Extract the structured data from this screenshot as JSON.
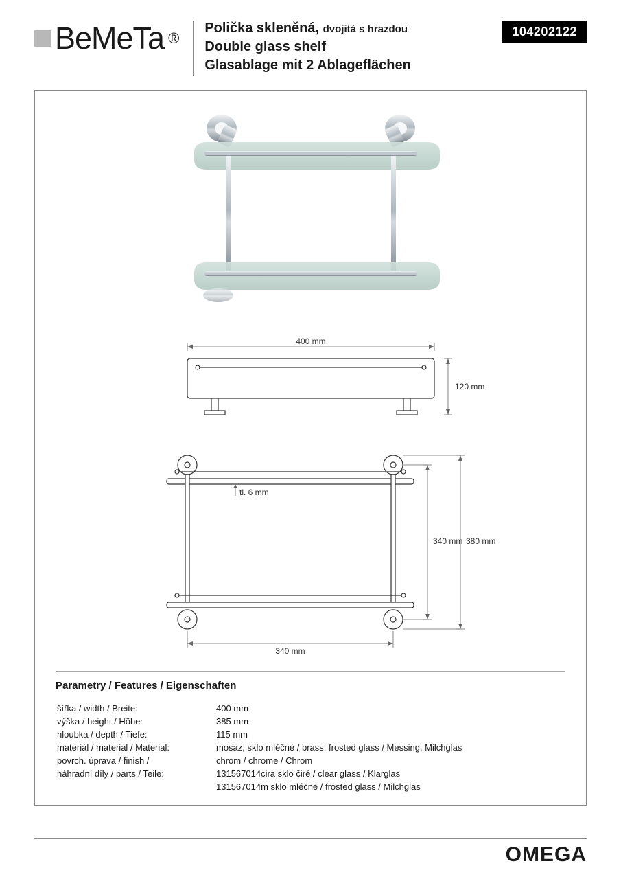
{
  "brand": "BeMeTa",
  "registered": "®",
  "product_code": "104202122",
  "titles": {
    "cz_main": "Polička skleněná,",
    "cz_sub": "dvojitá s hrazdou",
    "en": "Double glass shelf",
    "de": "Glasablage mit 2 Ablageflächen"
  },
  "dimensions": {
    "width_top": "400 mm",
    "height_side": "120 mm",
    "thickness": "tl. 6 mm",
    "height_inner": "340 mm",
    "height_outer": "380 mm",
    "width_bottom": "340 mm"
  },
  "features": {
    "heading": "Parametry / Features / Eigenschaften",
    "rows": [
      {
        "label": "šířka / width /  Breite:",
        "value": "400 mm"
      },
      {
        "label": "výška / height /  Höhe:",
        "value": "385 mm"
      },
      {
        "label": "hloubka / depth /  Tiefe:",
        "value": "115 mm"
      },
      {
        "label": "materiál / material  / Material:",
        "value": "mosaz, sklo mléčné / brass, frosted glass / Messing, Milchglas"
      },
      {
        "label": "povrch. úprava / finish /",
        "value": "chrom / chrome / Chrom"
      },
      {
        "label": "náhradní díly / parts /  Teile:",
        "value": "131567014cira  sklo čiré / clear glass / Klarglas"
      },
      {
        "label": "",
        "value": "131567014m  sklo mléčné / frosted glass / Milchglas"
      }
    ]
  },
  "collection": "OMEGA",
  "colors": {
    "glass": "#bfd4cf",
    "chrome_light": "#e0e4e7",
    "chrome_dark": "#8a949b",
    "bg": "#ffffff"
  }
}
